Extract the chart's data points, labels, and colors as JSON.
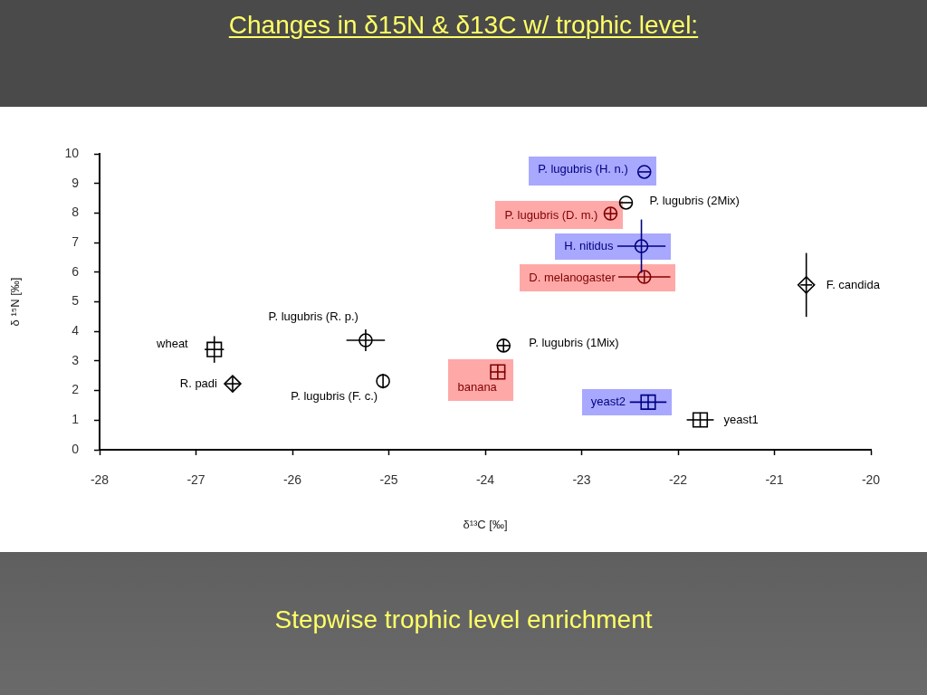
{
  "chart_data": {
    "type": "scatter",
    "title": "Changes in δ15N & δ13C w/ trophic level:",
    "xlabel": "δ¹³C [‰]",
    "ylabel": "δ ¹⁵N [‰]",
    "annotations": [
      "Stepwise trophic level enrichment"
    ],
    "xlim": [
      -28,
      -20
    ],
    "xticks": [
      -28,
      -27,
      -26,
      -25,
      -24,
      -23,
      -22,
      -21,
      -20
    ],
    "ylim": [
      0,
      10
    ],
    "yticks": [
      0,
      1,
      2,
      3,
      4,
      5,
      6,
      7,
      8,
      9,
      10
    ],
    "series": [
      {
        "name": "wheat",
        "color": "#000000",
        "marker": "square",
        "x": [
          -26.81
        ],
        "values": [
          3.39
        ],
        "errors": [
          0.45
        ],
        "xerrors": [
          0.1
        ]
      },
      {
        "name": "R. padi",
        "color": "#000000",
        "marker": "diamond",
        "x": [
          -26.62
        ],
        "values": [
          2.23
        ],
        "errors": [
          0.25
        ],
        "xerrors": [
          0.08
        ]
      },
      {
        "name": "P. lugubris (R. p.)",
        "color": "#000000",
        "marker": "circle",
        "x": [
          -25.24
        ],
        "values": [
          3.7
        ],
        "errors": [
          0.37
        ],
        "xerrors": [
          0.2
        ]
      },
      {
        "name": "P. lugubris (F. c.)",
        "color": "#000000",
        "marker": "circle",
        "x": [
          -25.06
        ],
        "values": [
          2.32
        ],
        "errors": [
          0.25
        ],
        "xerrors": [
          null
        ]
      },
      {
        "name": "P. lugubris (1Mix)",
        "color": "#000000",
        "marker": "circle",
        "x": [
          -23.81
        ],
        "values": [
          3.52
        ],
        "errors": [
          0.2
        ],
        "xerrors": [
          0.07
        ]
      },
      {
        "name": "banana",
        "color": "#800000",
        "marker": "square",
        "x": [
          -23.87
        ],
        "values": [
          2.63
        ],
        "errors": [
          0.25
        ],
        "xerrors": [
          0.08
        ]
      },
      {
        "name": "yeast2",
        "color": "#000080",
        "marker": "square",
        "x": [
          -22.31
        ],
        "values": [
          1.61
        ],
        "errors": [
          0.25
        ],
        "xerrors": [
          0.19
        ]
      },
      {
        "name": "yeast1",
        "color": "#000000",
        "marker": "square",
        "x": [
          -21.77
        ],
        "values": [
          1.01
        ],
        "errors": [
          0.25
        ],
        "xerrors": [
          0.14
        ]
      },
      {
        "name": "P. lugubris (H. n.)",
        "color": "#000080",
        "marker": "circle",
        "x": [
          -22.35
        ],
        "values": [
          9.39
        ],
        "errors": [
          null
        ],
        "xerrors": [
          0.06
        ]
      },
      {
        "name": "P. lugubris (2Mix)",
        "color": "#000000",
        "marker": "circle",
        "x": [
          -22.54
        ],
        "values": [
          8.35
        ],
        "errors": [
          null
        ],
        "xerrors": [
          0.07
        ]
      },
      {
        "name": "P. lugubris (D. m.)",
        "color": "#800000",
        "marker": "circle",
        "x": [
          -22.7
        ],
        "values": [
          7.98
        ],
        "errors": [
          0.2
        ],
        "xerrors": [
          0.07
        ]
      },
      {
        "name": "H. nitidus",
        "color": "#000080",
        "marker": "circle",
        "x": [
          -22.38
        ],
        "values": [
          6.88
        ],
        "errors": [
          0.9
        ],
        "xerrors": [
          0.25
        ]
      },
      {
        "name": "D. melanogaster",
        "color": "#800000",
        "marker": "circle",
        "x": [
          -22.35
        ],
        "values": [
          5.84
        ],
        "errors": [
          0.2
        ],
        "xerrors": [
          0.27
        ]
      },
      {
        "name": "F. candida",
        "color": "#000000",
        "marker": "diamond",
        "x": [
          -20.67
        ],
        "values": [
          5.57
        ],
        "errors": [
          1.08
        ],
        "xerrors": [
          0.06
        ]
      }
    ]
  }
}
